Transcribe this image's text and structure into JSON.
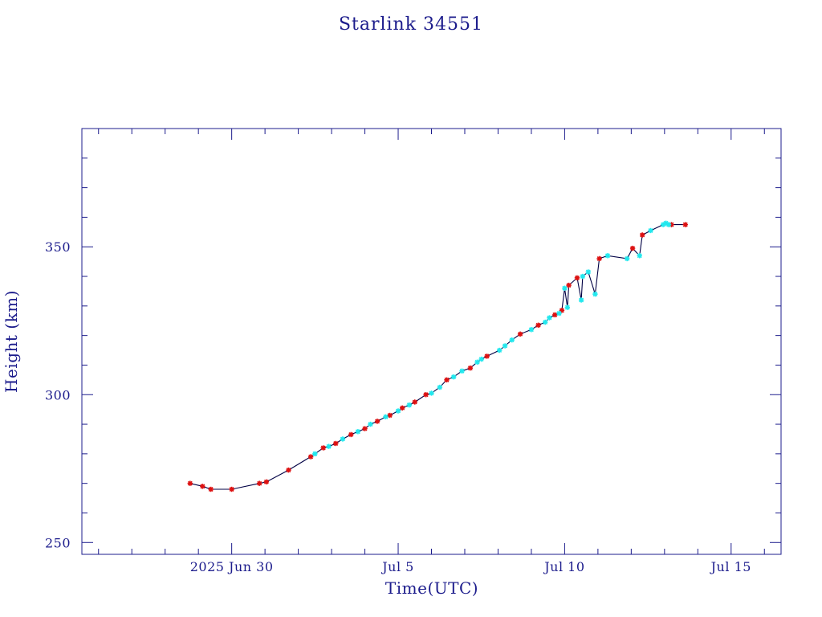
{
  "chart_data": {
    "type": "scatter",
    "title": "Starlink 34551",
    "xlabel": "Time(UTC)",
    "ylabel": "Height (km)",
    "x_unit": "date (UTC)",
    "xlim": [
      "2025-06-25T12:00",
      "2025-07-16T12:00"
    ],
    "ylim": [
      246,
      390
    ],
    "x_ticks": [
      {
        "x": "2025-06-30",
        "label": "2025 Jun 30"
      },
      {
        "x": "2025-07-05",
        "label": "Jul  5"
      },
      {
        "x": "2025-07-10",
        "label": "Jul 10"
      },
      {
        "x": "2025-07-15",
        "label": "Jul 15"
      }
    ],
    "y_ticks": [
      250,
      300,
      350
    ],
    "grid": false,
    "colors": {
      "axis": "#1c1c8c",
      "line": "#000044",
      "series_a": "#dd1111",
      "series_b": "#22e8ee"
    },
    "series": [
      {
        "marker": "asterisk",
        "color": "#dd1111",
        "points": [
          [
            "2025-06-28T18:00",
            270.0
          ],
          [
            "2025-06-29T03:00",
            269.0
          ],
          [
            "2025-06-29T09:00",
            268.0
          ],
          [
            "2025-06-30T00:00",
            268.0
          ],
          [
            "2025-06-30T20:00",
            270.0
          ],
          [
            "2025-07-01T01:00",
            270.5
          ],
          [
            "2025-07-01T17:00",
            274.5
          ],
          [
            "2025-07-02T09:00",
            279.0
          ],
          [
            "2025-07-02T18:00",
            282.0
          ],
          [
            "2025-07-03T03:00",
            283.5
          ],
          [
            "2025-07-03T14:00",
            286.5
          ],
          [
            "2025-07-04T00:00",
            288.5
          ],
          [
            "2025-07-04T09:00",
            291.0
          ],
          [
            "2025-07-04T18:00",
            293.0
          ],
          [
            "2025-07-05T03:00",
            295.5
          ],
          [
            "2025-07-05T12:00",
            297.5
          ],
          [
            "2025-07-05T20:00",
            300.0
          ],
          [
            "2025-07-06T11:00",
            305.0
          ],
          [
            "2025-07-07T04:00",
            309.0
          ],
          [
            "2025-07-07T16:00",
            313.0
          ],
          [
            "2025-07-08T16:00",
            320.5
          ],
          [
            "2025-07-09T05:00",
            323.5
          ],
          [
            "2025-07-09T17:00",
            327.0
          ],
          [
            "2025-07-09T22:00",
            328.5
          ],
          [
            "2025-07-10T03:00",
            337.0
          ],
          [
            "2025-07-10T09:00",
            339.5
          ],
          [
            "2025-07-11T01:00",
            346.0
          ],
          [
            "2025-07-12T01:00",
            349.5
          ],
          [
            "2025-07-12T08:00",
            354.0
          ],
          [
            "2025-07-13T05:00",
            357.5
          ],
          [
            "2025-07-13T15:00",
            357.5
          ]
        ]
      },
      {
        "marker": "asterisk",
        "color": "#22e8ee",
        "points": [
          [
            "2025-07-02T12:00",
            280.0
          ],
          [
            "2025-07-02T22:00",
            282.5
          ],
          [
            "2025-07-03T08:00",
            285.0
          ],
          [
            "2025-07-03T19:00",
            287.5
          ],
          [
            "2025-07-04T04:00",
            290.0
          ],
          [
            "2025-07-04T15:00",
            292.5
          ],
          [
            "2025-07-05T00:00",
            294.5
          ],
          [
            "2025-07-05T08:00",
            296.5
          ],
          [
            "2025-07-06T00:00",
            300.5
          ],
          [
            "2025-07-06T06:00",
            302.5
          ],
          [
            "2025-07-06T16:00",
            306.0
          ],
          [
            "2025-07-06T22:00",
            308.0
          ],
          [
            "2025-07-07T09:00",
            311.0
          ],
          [
            "2025-07-07T12:00",
            312.0
          ],
          [
            "2025-07-08T01:00",
            315.0
          ],
          [
            "2025-07-08T05:00",
            316.5
          ],
          [
            "2025-07-08T10:00",
            318.5
          ],
          [
            "2025-07-09T00:00",
            322.0
          ],
          [
            "2025-07-09T10:00",
            324.5
          ],
          [
            "2025-07-09T13:00",
            326.0
          ],
          [
            "2025-07-09T20:00",
            327.5
          ],
          [
            "2025-07-10T02:00",
            329.5
          ],
          [
            "2025-07-10T12:00",
            332.0
          ],
          [
            "2025-07-10T22:00",
            334.0
          ],
          [
            "2025-07-10T00:00",
            336.0
          ],
          [
            "2025-07-10T13:00",
            340.0
          ],
          [
            "2025-07-10T17:00",
            341.5
          ],
          [
            "2025-07-11T07:00",
            347.0
          ],
          [
            "2025-07-11T21:00",
            346.0
          ],
          [
            "2025-07-12T06:00",
            347.0
          ],
          [
            "2025-07-12T14:00",
            355.5
          ],
          [
            "2025-07-12T23:00",
            357.5
          ],
          [
            "2025-07-13T01:00",
            358.0
          ],
          [
            "2025-07-13T03:00",
            357.5
          ]
        ]
      }
    ]
  }
}
